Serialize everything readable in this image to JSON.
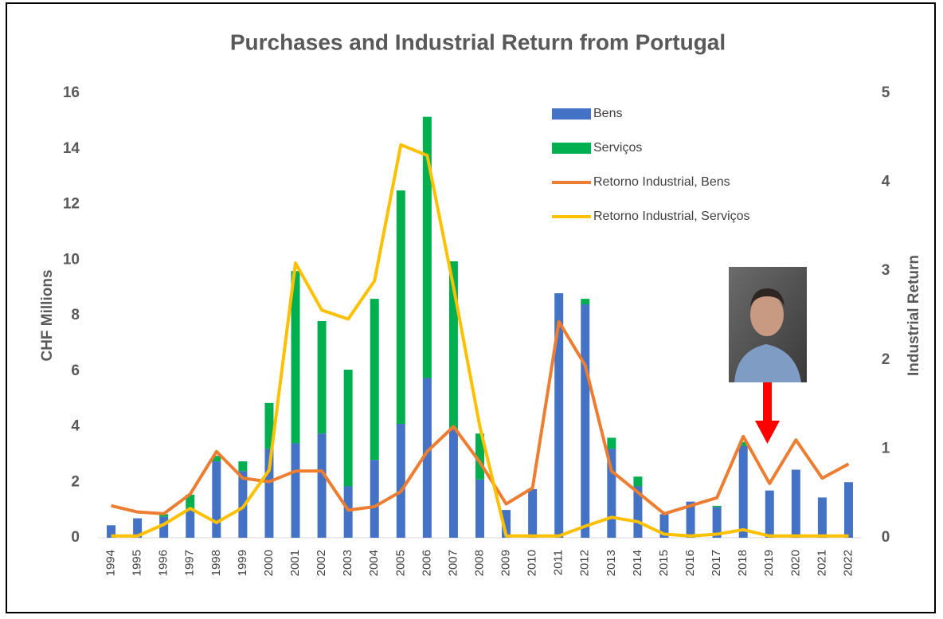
{
  "chart_data": {
    "type": "bar",
    "title": "Purchases and Industrial Return from Portugal",
    "y_label": "CHF Millions",
    "y2_label": "Industrial Return",
    "categories": [
      "1994",
      "1995",
      "1996",
      "1997",
      "1998",
      "1999",
      "2000",
      "2001",
      "2002",
      "2003",
      "2004",
      "2005",
      "2006",
      "2007",
      "2008",
      "2009",
      "2010",
      "2011",
      "2012",
      "2013",
      "2014",
      "2015",
      "2016",
      "2017",
      "2018",
      "2019",
      "2020",
      "2021",
      "2022"
    ],
    "series": [
      {
        "name": "Bens",
        "type": "bar",
        "color": "#4472c4",
        "values": [
          0.45,
          0.7,
          0.75,
          1.0,
          2.75,
          2.4,
          3.2,
          3.4,
          3.75,
          1.85,
          2.8,
          4.1,
          5.75,
          3.9,
          2.1,
          1.0,
          1.75,
          8.8,
          8.4,
          3.2,
          1.85,
          0.85,
          1.3,
          1.1,
          3.3,
          1.7,
          2.45,
          1.45,
          2.0
        ]
      },
      {
        "name": "Serviços",
        "type": "bar",
        "color": "#00b050",
        "values": [
          0,
          0,
          0.1,
          0.55,
          0.2,
          0.35,
          1.65,
          6.2,
          4.05,
          4.2,
          5.8,
          8.4,
          9.4,
          6.05,
          1.65,
          0,
          0,
          0,
          0.2,
          0.4,
          0.35,
          0,
          0,
          0.05,
          0.15,
          0,
          0,
          0,
          0
        ]
      },
      {
        "name": "Retorno Industrial, Bens",
        "type": "line",
        "axis": "y2",
        "color": "#ed7d31",
        "values": [
          0.36,
          0.29,
          0.27,
          0.49,
          0.97,
          0.67,
          0.63,
          0.75,
          0.75,
          0.31,
          0.35,
          0.52,
          0.97,
          1.25,
          0.85,
          0.38,
          0.56,
          2.43,
          1.94,
          0.75,
          0.51,
          0.27,
          0.36,
          0.45,
          1.14,
          0.61,
          1.1,
          0.67,
          0.83
        ]
      },
      {
        "name": "Retorno Industrial, Serviços",
        "type": "line",
        "axis": "y2",
        "color": "#ffc000",
        "values": [
          0.02,
          0.02,
          0.15,
          0.33,
          0.17,
          0.34,
          0.76,
          3.09,
          2.56,
          2.46,
          2.89,
          4.42,
          4.3,
          2.82,
          1.25,
          0.02,
          0.02,
          0.02,
          0.13,
          0.23,
          0.18,
          0.04,
          0.02,
          0.04,
          0.09,
          0.02,
          0.02,
          0.02,
          0.02
        ]
      }
    ],
    "ylim": [
      0,
      16
    ],
    "yticks": [
      0,
      2,
      4,
      6,
      8,
      10,
      12,
      14,
      16
    ],
    "y2lim": [
      0,
      5
    ],
    "y2ticks": [
      0,
      1,
      2,
      3,
      4,
      5
    ],
    "stacked": true,
    "legend": "top-right"
  }
}
